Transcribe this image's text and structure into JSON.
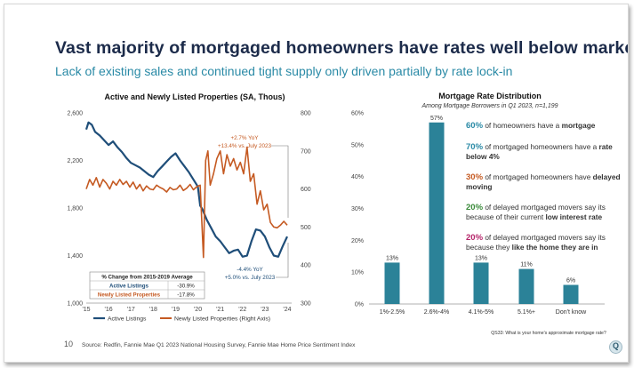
{
  "slide": {
    "title": "Vast majority of mortgaged homeowners have rates well below market",
    "subtitle": "Lack of existing sales and continued tight supply only driven partially by rate lock-in",
    "source": "Source: Redfin, Fannie Mae Q1 2023 National Housing Survey, Fannie Mae Home Price Sentiment Index",
    "footnote_mark": "10"
  },
  "colors": {
    "title": "#1c2b4a",
    "accent": "#2a8aa6",
    "active": "#1f4e79",
    "new": "#c55a22",
    "bar": "#2b8298"
  },
  "left_table": {
    "header": "% Change from 2015-2019 Average",
    "rows": [
      {
        "label": "Active Listings",
        "value": "-30.9%",
        "color": "#1f4e79"
      },
      {
        "label": "Newly Listed Properties",
        "value": "-17.8%",
        "color": "#c55a22"
      }
    ]
  },
  "stats": [
    {
      "pct": "60%",
      "pre": " of homeowners have a ",
      "bold": "mortgage",
      "post": "",
      "color": "#2a8aa6"
    },
    {
      "pct": "70%",
      "pre": " of mortgaged homeowners have a ",
      "bold": "rate below 4%",
      "post": "",
      "color": "#2a8aa6"
    },
    {
      "pct": "30%",
      "pre": " of mortgaged homeowners have ",
      "bold": "delayed moving",
      "post": "",
      "color": "#c55a22"
    },
    {
      "pct": "20%",
      "pre": " of delayed mortgaged movers say its because of their current ",
      "bold": "low interest rate",
      "post": "",
      "color": "#3a8a3a"
    },
    {
      "pct": "20%",
      "pre": " of delayed mortgaged movers say its because they ",
      "bold": "like the home they are in",
      "post": "",
      "color": "#b5256a"
    }
  ],
  "chart_data": [
    {
      "type": "line",
      "title": "Active and Newly Listed Properties (SA, Thous)",
      "x_ticks": [
        "'15",
        "'16",
        "'17",
        "'18",
        "'19",
        "'20",
        "'21",
        "'22",
        "'23",
        "'24"
      ],
      "xlim": [
        2015,
        2024.2
      ],
      "ylim_left": [
        1000,
        2600
      ],
      "ylim_right": [
        300,
        800
      ],
      "yticks_left": [
        "1,000",
        "1,400",
        "1,800",
        "2,200",
        "2,600"
      ],
      "yticks_right": [
        "300",
        "400",
        "500",
        "600",
        "700",
        "800"
      ],
      "legend_position": "bottom",
      "series": [
        {
          "name": "Active Listings",
          "axis": "left",
          "color": "#1f4e79",
          "x": [
            2015.0,
            2015.1,
            2015.25,
            2015.4,
            2015.6,
            2015.8,
            2016.0,
            2016.2,
            2016.4,
            2016.6,
            2016.8,
            2017.0,
            2017.2,
            2017.4,
            2017.6,
            2017.8,
            2018.0,
            2018.2,
            2018.4,
            2018.6,
            2018.8,
            2019.0,
            2019.2,
            2019.4,
            2019.6,
            2019.8,
            2020.0,
            2020.1,
            2020.2,
            2020.4,
            2020.6,
            2020.8,
            2021.0,
            2021.2,
            2021.4,
            2021.6,
            2021.8,
            2022.0,
            2022.2,
            2022.4,
            2022.6,
            2022.8,
            2023.0,
            2023.2,
            2023.4,
            2023.6,
            2023.8,
            2024.0
          ],
          "y": [
            2460,
            2520,
            2500,
            2440,
            2410,
            2370,
            2330,
            2360,
            2310,
            2270,
            2220,
            2180,
            2160,
            2140,
            2110,
            2080,
            2060,
            2110,
            2150,
            2190,
            2230,
            2260,
            2200,
            2150,
            2100,
            2040,
            1980,
            1820,
            1790,
            1700,
            1630,
            1560,
            1520,
            1470,
            1420,
            1440,
            1450,
            1390,
            1400,
            1520,
            1620,
            1610,
            1560,
            1470,
            1400,
            1390,
            1480,
            1560
          ]
        },
        {
          "name": "Newly Listed Properties (Right Axis)",
          "axis": "right",
          "color": "#c55a22",
          "x": [
            2015.0,
            2015.15,
            2015.3,
            2015.45,
            2015.6,
            2015.75,
            2015.9,
            2016.05,
            2016.2,
            2016.35,
            2016.5,
            2016.65,
            2016.8,
            2016.95,
            2017.1,
            2017.25,
            2017.4,
            2017.55,
            2017.7,
            2017.85,
            2018.0,
            2018.15,
            2018.3,
            2018.45,
            2018.6,
            2018.75,
            2018.9,
            2019.05,
            2019.2,
            2019.35,
            2019.5,
            2019.65,
            2019.8,
            2019.95,
            2020.1,
            2020.25,
            2020.35,
            2020.45,
            2020.55,
            2020.7,
            2020.85,
            2021.0,
            2021.15,
            2021.3,
            2021.45,
            2021.6,
            2021.75,
            2021.9,
            2022.05,
            2022.2,
            2022.35,
            2022.5,
            2022.65,
            2022.8,
            2022.95,
            2023.1,
            2023.25,
            2023.4,
            2023.55,
            2023.7,
            2023.85,
            2024.0
          ],
          "y": [
            600,
            625,
            610,
            630,
            605,
            625,
            615,
            600,
            620,
            610,
            625,
            612,
            620,
            605,
            618,
            600,
            612,
            595,
            608,
            600,
            598,
            610,
            604,
            600,
            592,
            604,
            598,
            600,
            610,
            596,
            602,
            612,
            598,
            606,
            610,
            420,
            675,
            700,
            610,
            640,
            680,
            700,
            640,
            690,
            660,
            680,
            650,
            670,
            640,
            710,
            620,
            640,
            560,
            595,
            545,
            560,
            512,
            500,
            498,
            505,
            515,
            505
          ]
        }
      ],
      "annotations": [
        {
          "text": "+2.7% YoY",
          "color": "#c55a22"
        },
        {
          "text": "+13.4% vs. July 2023",
          "color": "#c55a22"
        },
        {
          "text": "-4.4% YoY",
          "color": "#1f4e79"
        },
        {
          "text": "+5.0% vs. July 2023",
          "color": "#1f4e79"
        }
      ]
    },
    {
      "type": "bar",
      "title": "Mortgage Rate Distribution",
      "subtitle": "Among Mortgage Borrowers in Q1 2023, n=1,199",
      "categories": [
        "1%-2.5%",
        "2.6%-4%",
        "4.1%-5%",
        "5.1%+",
        "Don't know"
      ],
      "values": [
        13,
        57,
        13,
        11,
        6
      ],
      "data_labels": [
        "13%",
        "57%",
        "13%",
        "11%",
        "6%"
      ],
      "ylim": [
        0,
        60
      ],
      "yticks": [
        "0%",
        "10%",
        "20%",
        "30%",
        "40%",
        "50%",
        "60%"
      ],
      "color": "#2b8298",
      "note": "QS33: What is your home's approximate mortgage rate?"
    }
  ]
}
